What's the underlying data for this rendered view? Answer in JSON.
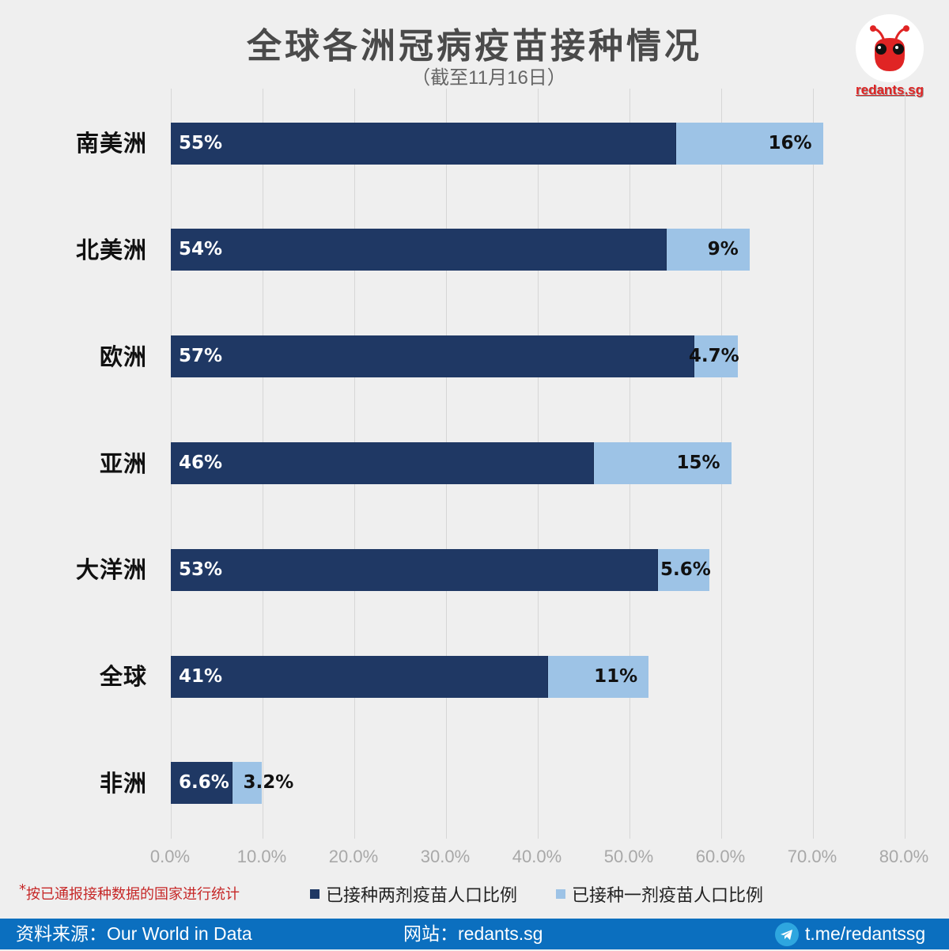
{
  "header": {
    "title": "全球各洲冠病疫苗接种情况",
    "subtitle": "（截至11月16日）"
  },
  "logo": {
    "text": "redants.sg",
    "icon": "red-ant-logo-icon"
  },
  "colors": {
    "fully_vaccinated": "#1f3864",
    "partially_vaccinated": "#9dc3e6",
    "background": "#efefef",
    "footer": "#0b6fbf",
    "note": "#c62828"
  },
  "chart_data": {
    "type": "bar",
    "orientation": "horizontal",
    "stacked": true,
    "title": "全球各洲冠病疫苗接种情况",
    "subtitle": "（截至11月16日）",
    "categories": [
      "南美洲",
      "北美洲",
      "欧洲",
      "亚洲",
      "大洋洲",
      "全球",
      "非洲"
    ],
    "series": [
      {
        "name": "已接种两剂疫苗人口比例",
        "color": "#1f3864",
        "values": [
          55,
          54,
          57,
          46,
          53,
          41,
          6.6
        ],
        "labels": [
          "55%",
          "54%",
          "57%",
          "46%",
          "53%",
          "41%",
          "6.6%"
        ]
      },
      {
        "name": "已接种一剂疫苗人口比例",
        "color": "#9dc3e6",
        "values": [
          16,
          9,
          4.7,
          15,
          5.6,
          11,
          3.2
        ],
        "labels": [
          "16%",
          "9%",
          "4.7%",
          "15%",
          "5.6%",
          "11%",
          "3.2%"
        ]
      }
    ],
    "xlabel": "",
    "ylabel": "",
    "xlim": [
      0,
      80
    ],
    "xticks": [
      "0.0%",
      "10.0%",
      "20.0%",
      "30.0%",
      "40.0%",
      "50.0%",
      "60.0%",
      "70.0%",
      "80.0%"
    ],
    "grid": true,
    "legend_position": "bottom"
  },
  "note": {
    "star": "*",
    "text": "按已通报接种数据的国家进行统计"
  },
  "legend": [
    {
      "label": "已接种两剂疫苗人口比例"
    },
    {
      "label": "已接种一剂疫苗人口比例"
    }
  ],
  "footer": {
    "source": "资料来源：Our World in Data",
    "website": "网站：redants.sg",
    "telegram": "t.me/redantssg",
    "telegram_icon": "telegram-icon"
  }
}
